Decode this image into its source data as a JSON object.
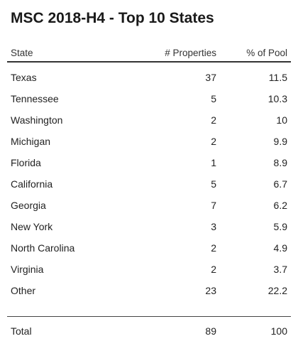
{
  "title": "MSC 2018-H4 - Top 10 States",
  "columns": {
    "state": "State",
    "properties": "# Properties",
    "pool": "% of Pool"
  },
  "rows": [
    {
      "state": "Texas",
      "properties": "37",
      "pool": "11.5"
    },
    {
      "state": "Tennessee",
      "properties": "5",
      "pool": "10.3"
    },
    {
      "state": "Washington",
      "properties": "2",
      "pool": "10"
    },
    {
      "state": "Michigan",
      "properties": "2",
      "pool": "9.9"
    },
    {
      "state": "Florida",
      "properties": "1",
      "pool": "8.9"
    },
    {
      "state": "California",
      "properties": "5",
      "pool": "6.7"
    },
    {
      "state": "Georgia",
      "properties": "7",
      "pool": "6.2"
    },
    {
      "state": "New York",
      "properties": "3",
      "pool": "5.9"
    },
    {
      "state": "North Carolina",
      "properties": "2",
      "pool": "4.9"
    },
    {
      "state": "Virginia",
      "properties": "2",
      "pool": "3.7"
    },
    {
      "state": "Other",
      "properties": "23",
      "pool": "22.2"
    }
  ],
  "total": {
    "state": "Total",
    "properties": "89",
    "pool": "100"
  }
}
